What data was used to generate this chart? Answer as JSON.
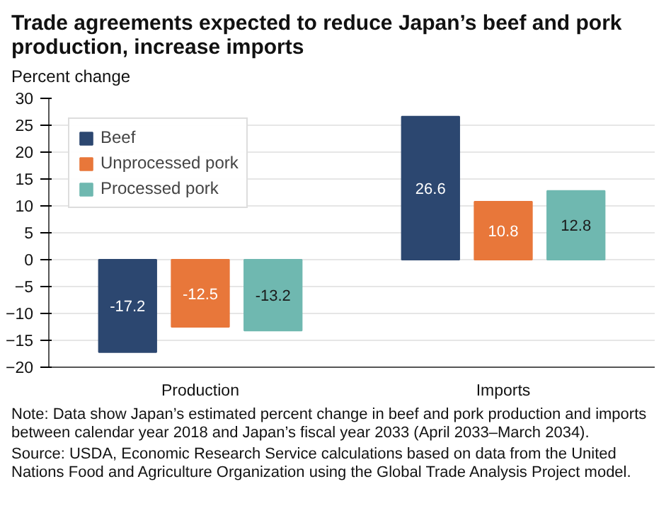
{
  "chart_data": {
    "type": "bar",
    "title": "Trade agreements expected to reduce Japan’s beef and pork production, increase imports",
    "ylabel": "Percent change",
    "categories": [
      "Production",
      "Imports"
    ],
    "series": [
      {
        "name": "Beef",
        "color": "#2c4770",
        "values": [
          -17.2,
          26.6
        ]
      },
      {
        "name": "Unprocessed pork",
        "color": "#e8773a",
        "values": [
          -12.5,
          10.8
        ]
      },
      {
        "name": "Processed pork",
        "color": "#6fb8b0",
        "values": [
          -13.2,
          12.8
        ]
      }
    ],
    "ylim": [
      -20,
      30
    ],
    "yticks": [
      -20,
      -15,
      -10,
      -5,
      0,
      5,
      10,
      15,
      20,
      25,
      30
    ],
    "grid": "y",
    "legend": "top left",
    "data_labels": true,
    "annotations": [
      "Note: Data show Japan’s estimated percent change in beef and pork production and imports between calendar year 2018 and Japan’s fiscal year 2033 (April 2033–March 2034).",
      "Source: USDA, Economic Research Service calculations based on data from the United Nations Food and Agriculture Organization using the Global Trade Analysis Project model."
    ]
  }
}
